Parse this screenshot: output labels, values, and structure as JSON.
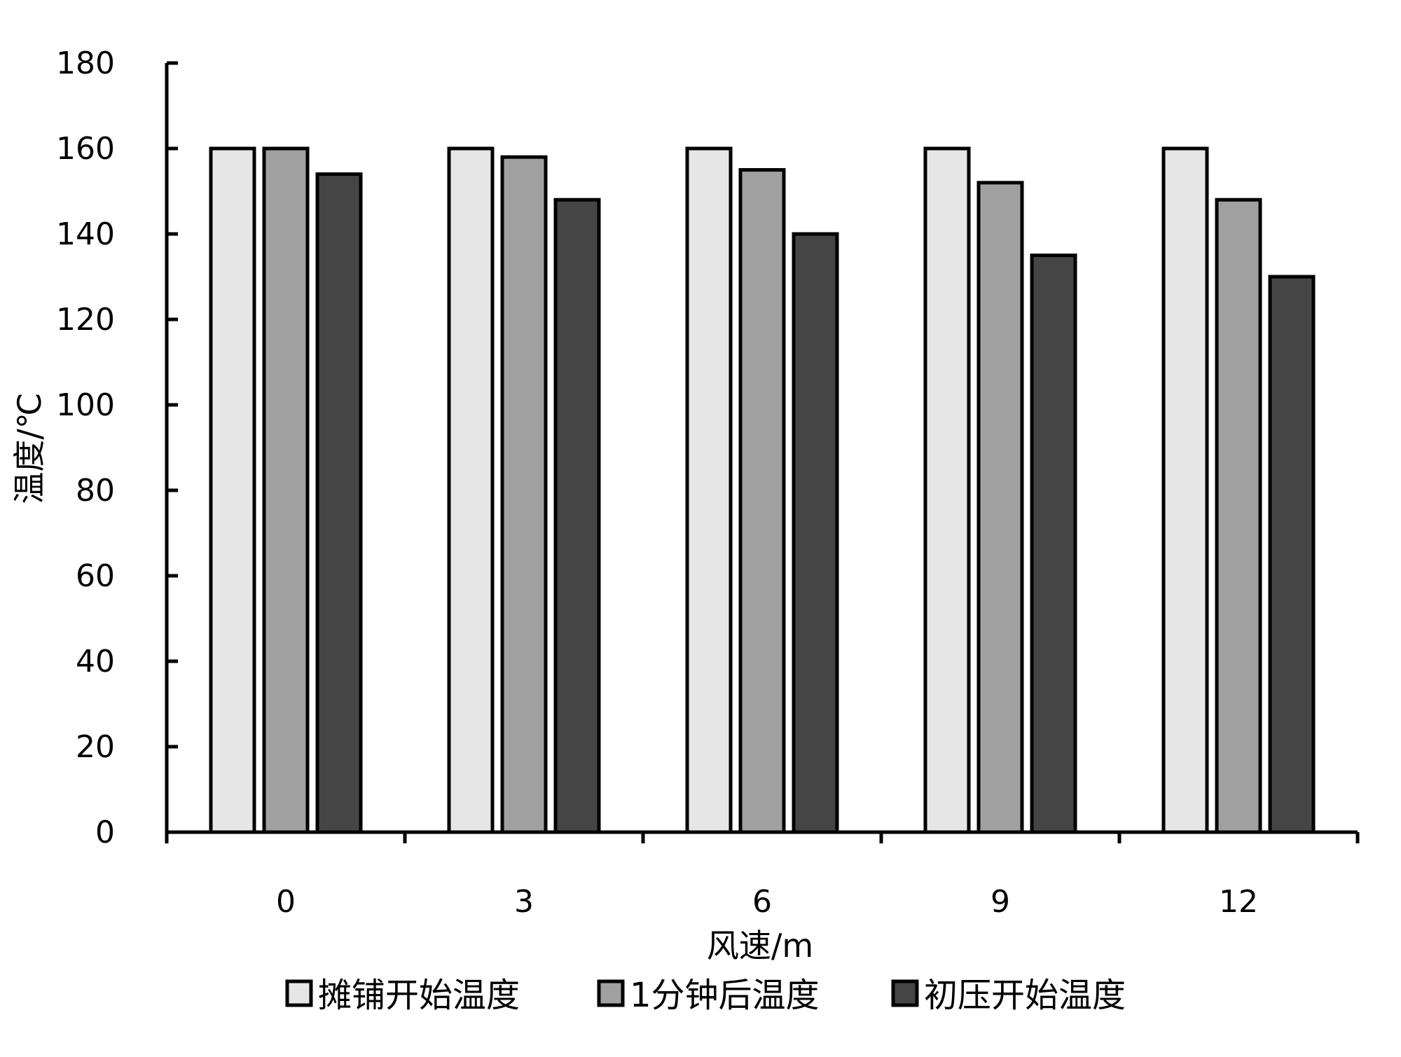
{
  "chart_data": {
    "type": "bar",
    "title": "",
    "xlabel": "风速/m",
    "ylabel": "温度/℃",
    "ylim": [
      0,
      180
    ],
    "yticks": [
      0,
      20,
      40,
      60,
      80,
      100,
      120,
      140,
      160,
      180
    ],
    "categories": [
      "0",
      "3",
      "6",
      "9",
      "12"
    ],
    "series": [
      {
        "name": "摊铺开始温度",
        "values": [
          160,
          160,
          160,
          160,
          160
        ],
        "color": "#e6e6e6"
      },
      {
        "name": "1分钟后温度",
        "values": [
          160,
          158,
          155,
          152,
          148
        ],
        "color": "#a0a0a0"
      },
      {
        "name": "初压开始温度",
        "values": [
          154,
          148,
          140,
          135,
          130
        ],
        "color": "#454545"
      }
    ],
    "grid": false,
    "legend_position": "bottom"
  }
}
